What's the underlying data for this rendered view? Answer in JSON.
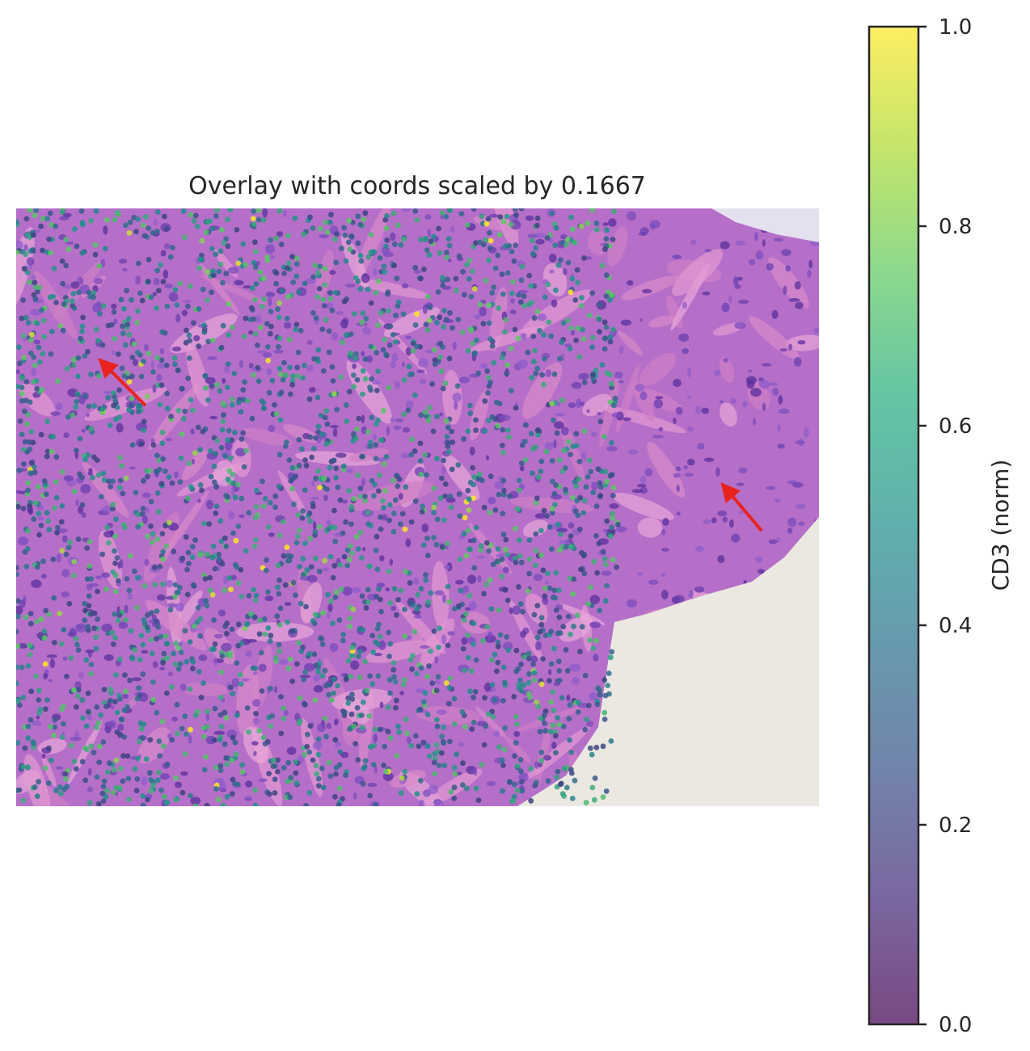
{
  "chart_data": {
    "type": "scatter",
    "title": "Overlay with coords scaled by 0.1667",
    "background": "H&E histology image",
    "marker_colormap": "viridis",
    "marker_alpha": 0.8,
    "colorbar": {
      "label": "CD3 (norm)",
      "range": [
        0,
        1
      ],
      "ticks": [
        "0.0",
        "0.2",
        "0.4",
        "0.6",
        "0.8",
        "1.0"
      ],
      "tick_values": [
        0,
        0.2,
        0.4,
        0.6,
        0.8,
        1.0
      ],
      "colors": [
        "#440154",
        "#414487",
        "#2a788e",
        "#22a884",
        "#7ad151",
        "#fde725"
      ]
    },
    "annotations": [
      {
        "type": "arrow",
        "color": "#e8231e"
      },
      {
        "type": "arrow",
        "color": "#e8231e"
      }
    ],
    "axes_visible": false
  }
}
